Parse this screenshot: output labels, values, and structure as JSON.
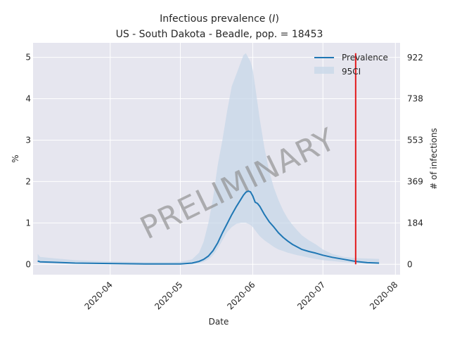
{
  "chart_data": {
    "type": "line",
    "title": "Infectious prevalence (I)",
    "title_prefix": "Infectious prevalence (",
    "title_var": "I",
    "title_suffix": ")",
    "subtitle": "US - South Dakota - Beadle, pop. = 18453",
    "xlabel": "Date",
    "ylabel": "%",
    "ylabel_right": "# of infections",
    "watermark": "PRELIMINARY",
    "grid": true,
    "legend_position": "top-right",
    "ylim": [
      -0.25,
      5.35
    ],
    "xlim": [
      -33,
      124
    ],
    "x_origin": "2020-04-01",
    "x_ticks": [
      {
        "day": 0,
        "label": "2020-04"
      },
      {
        "day": 30,
        "label": "2020-05"
      },
      {
        "day": 61,
        "label": "2020-06"
      },
      {
        "day": 91,
        "label": "2020-07"
      },
      {
        "day": 122,
        "label": "2020-08"
      }
    ],
    "y_ticks": [
      0,
      1,
      2,
      3,
      4,
      5
    ],
    "y_tick_labels": [
      "0",
      "1",
      "2",
      "3",
      "4",
      "5"
    ],
    "y_right_ticks": [
      {
        "value": 0,
        "label": "0"
      },
      {
        "value": 0.997,
        "label": "184"
      },
      {
        "value": 2.0,
        "label": "369"
      },
      {
        "value": 2.997,
        "label": "553"
      },
      {
        "value": 3.999,
        "label": "738"
      },
      {
        "value": 4.997,
        "label": "922"
      }
    ],
    "vline_day": 105,
    "vline_range": [
      0,
      5.1
    ],
    "colors": {
      "line": "#1f77b4",
      "band": "#c5d5e8",
      "vline": "#e3191b",
      "plot_bg": "#e6e6ef",
      "grid": "#ffffff"
    },
    "series": [
      {
        "name": "Prevalence",
        "x": [
          -31,
          -30,
          -25,
          -15,
          0,
          15,
          25,
          30,
          35,
          38,
          40,
          42,
          44,
          46,
          48,
          50,
          52,
          54,
          56,
          57,
          58,
          59,
          60,
          61,
          62,
          63,
          64,
          66,
          68,
          70,
          72,
          74,
          76,
          78,
          80,
          82,
          85,
          88,
          91,
          95,
          100,
          105,
          110,
          115
        ],
        "y": [
          0.08,
          0.06,
          0.05,
          0.03,
          0.02,
          0.01,
          0.01,
          0.01,
          0.03,
          0.07,
          0.12,
          0.2,
          0.33,
          0.52,
          0.76,
          0.98,
          1.2,
          1.4,
          1.58,
          1.67,
          1.74,
          1.77,
          1.75,
          1.65,
          1.5,
          1.47,
          1.4,
          1.2,
          1.03,
          0.9,
          0.76,
          0.65,
          0.56,
          0.48,
          0.42,
          0.36,
          0.31,
          0.27,
          0.22,
          0.17,
          0.12,
          0.07,
          0.04,
          0.03
        ]
      },
      {
        "name": "95CI",
        "x": [
          -31,
          -30,
          -25,
          -15,
          0,
          15,
          25,
          30,
          35,
          38,
          40,
          42,
          44,
          46,
          48,
          50,
          52,
          54,
          56,
          57,
          58,
          59,
          60,
          61,
          62,
          63,
          64,
          66,
          68,
          70,
          72,
          74,
          76,
          78,
          80,
          82,
          85,
          88,
          91,
          95,
          100,
          105,
          110,
          115
        ],
        "lower": [
          0.05,
          0.04,
          0.03,
          0.02,
          0.01,
          0.0,
          0.0,
          0.0,
          0.01,
          0.03,
          0.06,
          0.12,
          0.22,
          0.38,
          0.58,
          0.78,
          0.9,
          0.98,
          1.0,
          1.0,
          1.0,
          0.98,
          0.95,
          0.9,
          0.82,
          0.75,
          0.68,
          0.58,
          0.5,
          0.42,
          0.36,
          0.32,
          0.28,
          0.25,
          0.22,
          0.2,
          0.16,
          0.13,
          0.1,
          0.08,
          0.05,
          0.03,
          0.02,
          0.01
        ],
        "upper": [
          0.25,
          0.18,
          0.15,
          0.1,
          0.07,
          0.05,
          0.05,
          0.06,
          0.12,
          0.28,
          0.55,
          1.0,
          1.6,
          2.4,
          3.0,
          3.7,
          4.3,
          4.6,
          4.9,
          5.05,
          5.1,
          5.0,
          4.9,
          4.7,
          4.3,
          3.9,
          3.5,
          2.8,
          2.25,
          1.85,
          1.55,
          1.3,
          1.1,
          0.95,
          0.82,
          0.7,
          0.58,
          0.48,
          0.36,
          0.25,
          0.18,
          0.15,
          0.14,
          0.13
        ]
      }
    ]
  }
}
